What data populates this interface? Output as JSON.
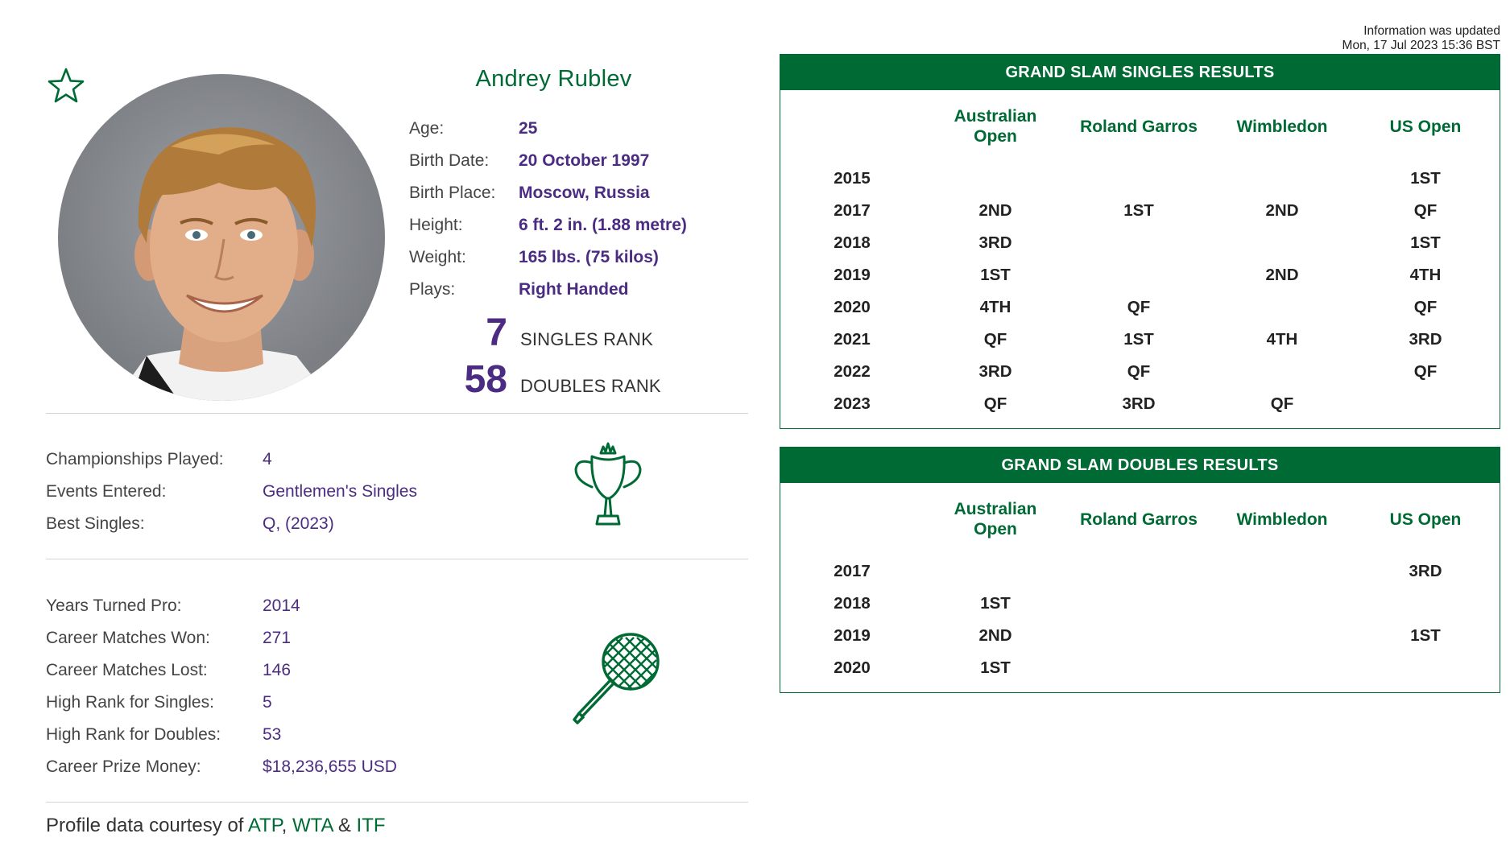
{
  "update_note": {
    "line1": "Information was updated",
    "line2": "Mon, 17 Jul 2023 15:36 BST"
  },
  "player": {
    "name": "Andrey Rublev",
    "bio": [
      {
        "label": "Age:",
        "value": "25"
      },
      {
        "label": "Birth Date:",
        "value": "20 October 1997"
      },
      {
        "label": "Birth Place:",
        "value": "Moscow, Russia"
      },
      {
        "label": "Height:",
        "value": "6 ft. 2 in. (1.88 metre)"
      },
      {
        "label": "Weight:",
        "value": "165 lbs. (75 kilos)"
      },
      {
        "label": "Plays:",
        "value": "Right Handed"
      }
    ],
    "singles_rank": {
      "value": "7",
      "label": "SINGLES RANK"
    },
    "doubles_rank": {
      "value": "58",
      "label": "DOUBLES RANK"
    }
  },
  "championship_stats": [
    {
      "label": "Championships Played:",
      "value": "4"
    },
    {
      "label": "Events Entered:",
      "value": "Gentlemen's Singles"
    },
    {
      "label": "Best Singles:",
      "value": "Q, (2023)"
    }
  ],
  "career_stats": [
    {
      "label": "Years Turned Pro:",
      "value": "2014"
    },
    {
      "label": "Career Matches Won:",
      "value": "271"
    },
    {
      "label": "Career Matches Lost:",
      "value": "146"
    },
    {
      "label": "High Rank for Singles:",
      "value": "5"
    },
    {
      "label": "High Rank for Doubles:",
      "value": "53"
    },
    {
      "label": "Career Prize Money:",
      "value": "$18,236,655 USD"
    }
  ],
  "credits": {
    "prefix": "Profile data courtesy of",
    "atp": "ATP",
    "sep1": ",",
    "wta": "WTA",
    "amp": "&",
    "itf": "ITF"
  },
  "singles_table": {
    "title": "GRAND SLAM SINGLES RESULTS",
    "columns": [
      "Australian Open",
      "Roland Garros",
      "Wimbledon",
      "US Open"
    ],
    "rows": [
      [
        "2015",
        "",
        "",
        "",
        "1ST"
      ],
      [
        "2017",
        "2ND",
        "1ST",
        "2ND",
        "QF"
      ],
      [
        "2018",
        "3RD",
        "",
        "",
        "1ST"
      ],
      [
        "2019",
        "1ST",
        "",
        "2ND",
        "4TH"
      ],
      [
        "2020",
        "4TH",
        "QF",
        "",
        "QF"
      ],
      [
        "2021",
        "QF",
        "1ST",
        "4TH",
        "3RD"
      ],
      [
        "2022",
        "3RD",
        "QF",
        "",
        "QF"
      ],
      [
        "2023",
        "QF",
        "3RD",
        "QF",
        ""
      ]
    ]
  },
  "doubles_table": {
    "title": "GRAND SLAM DOUBLES RESULTS",
    "columns": [
      "Australian Open",
      "Roland Garros",
      "Wimbledon",
      "US Open"
    ],
    "rows": [
      [
        "2017",
        "",
        "",
        "",
        "3RD"
      ],
      [
        "2018",
        "1ST",
        "",
        "",
        ""
      ],
      [
        "2019",
        "2ND",
        "",
        "",
        "1ST"
      ],
      [
        "2020",
        "1ST",
        "",
        "",
        ""
      ]
    ]
  },
  "colors": {
    "brand_green": "#006a35",
    "brand_purple": "#4b2c82"
  }
}
